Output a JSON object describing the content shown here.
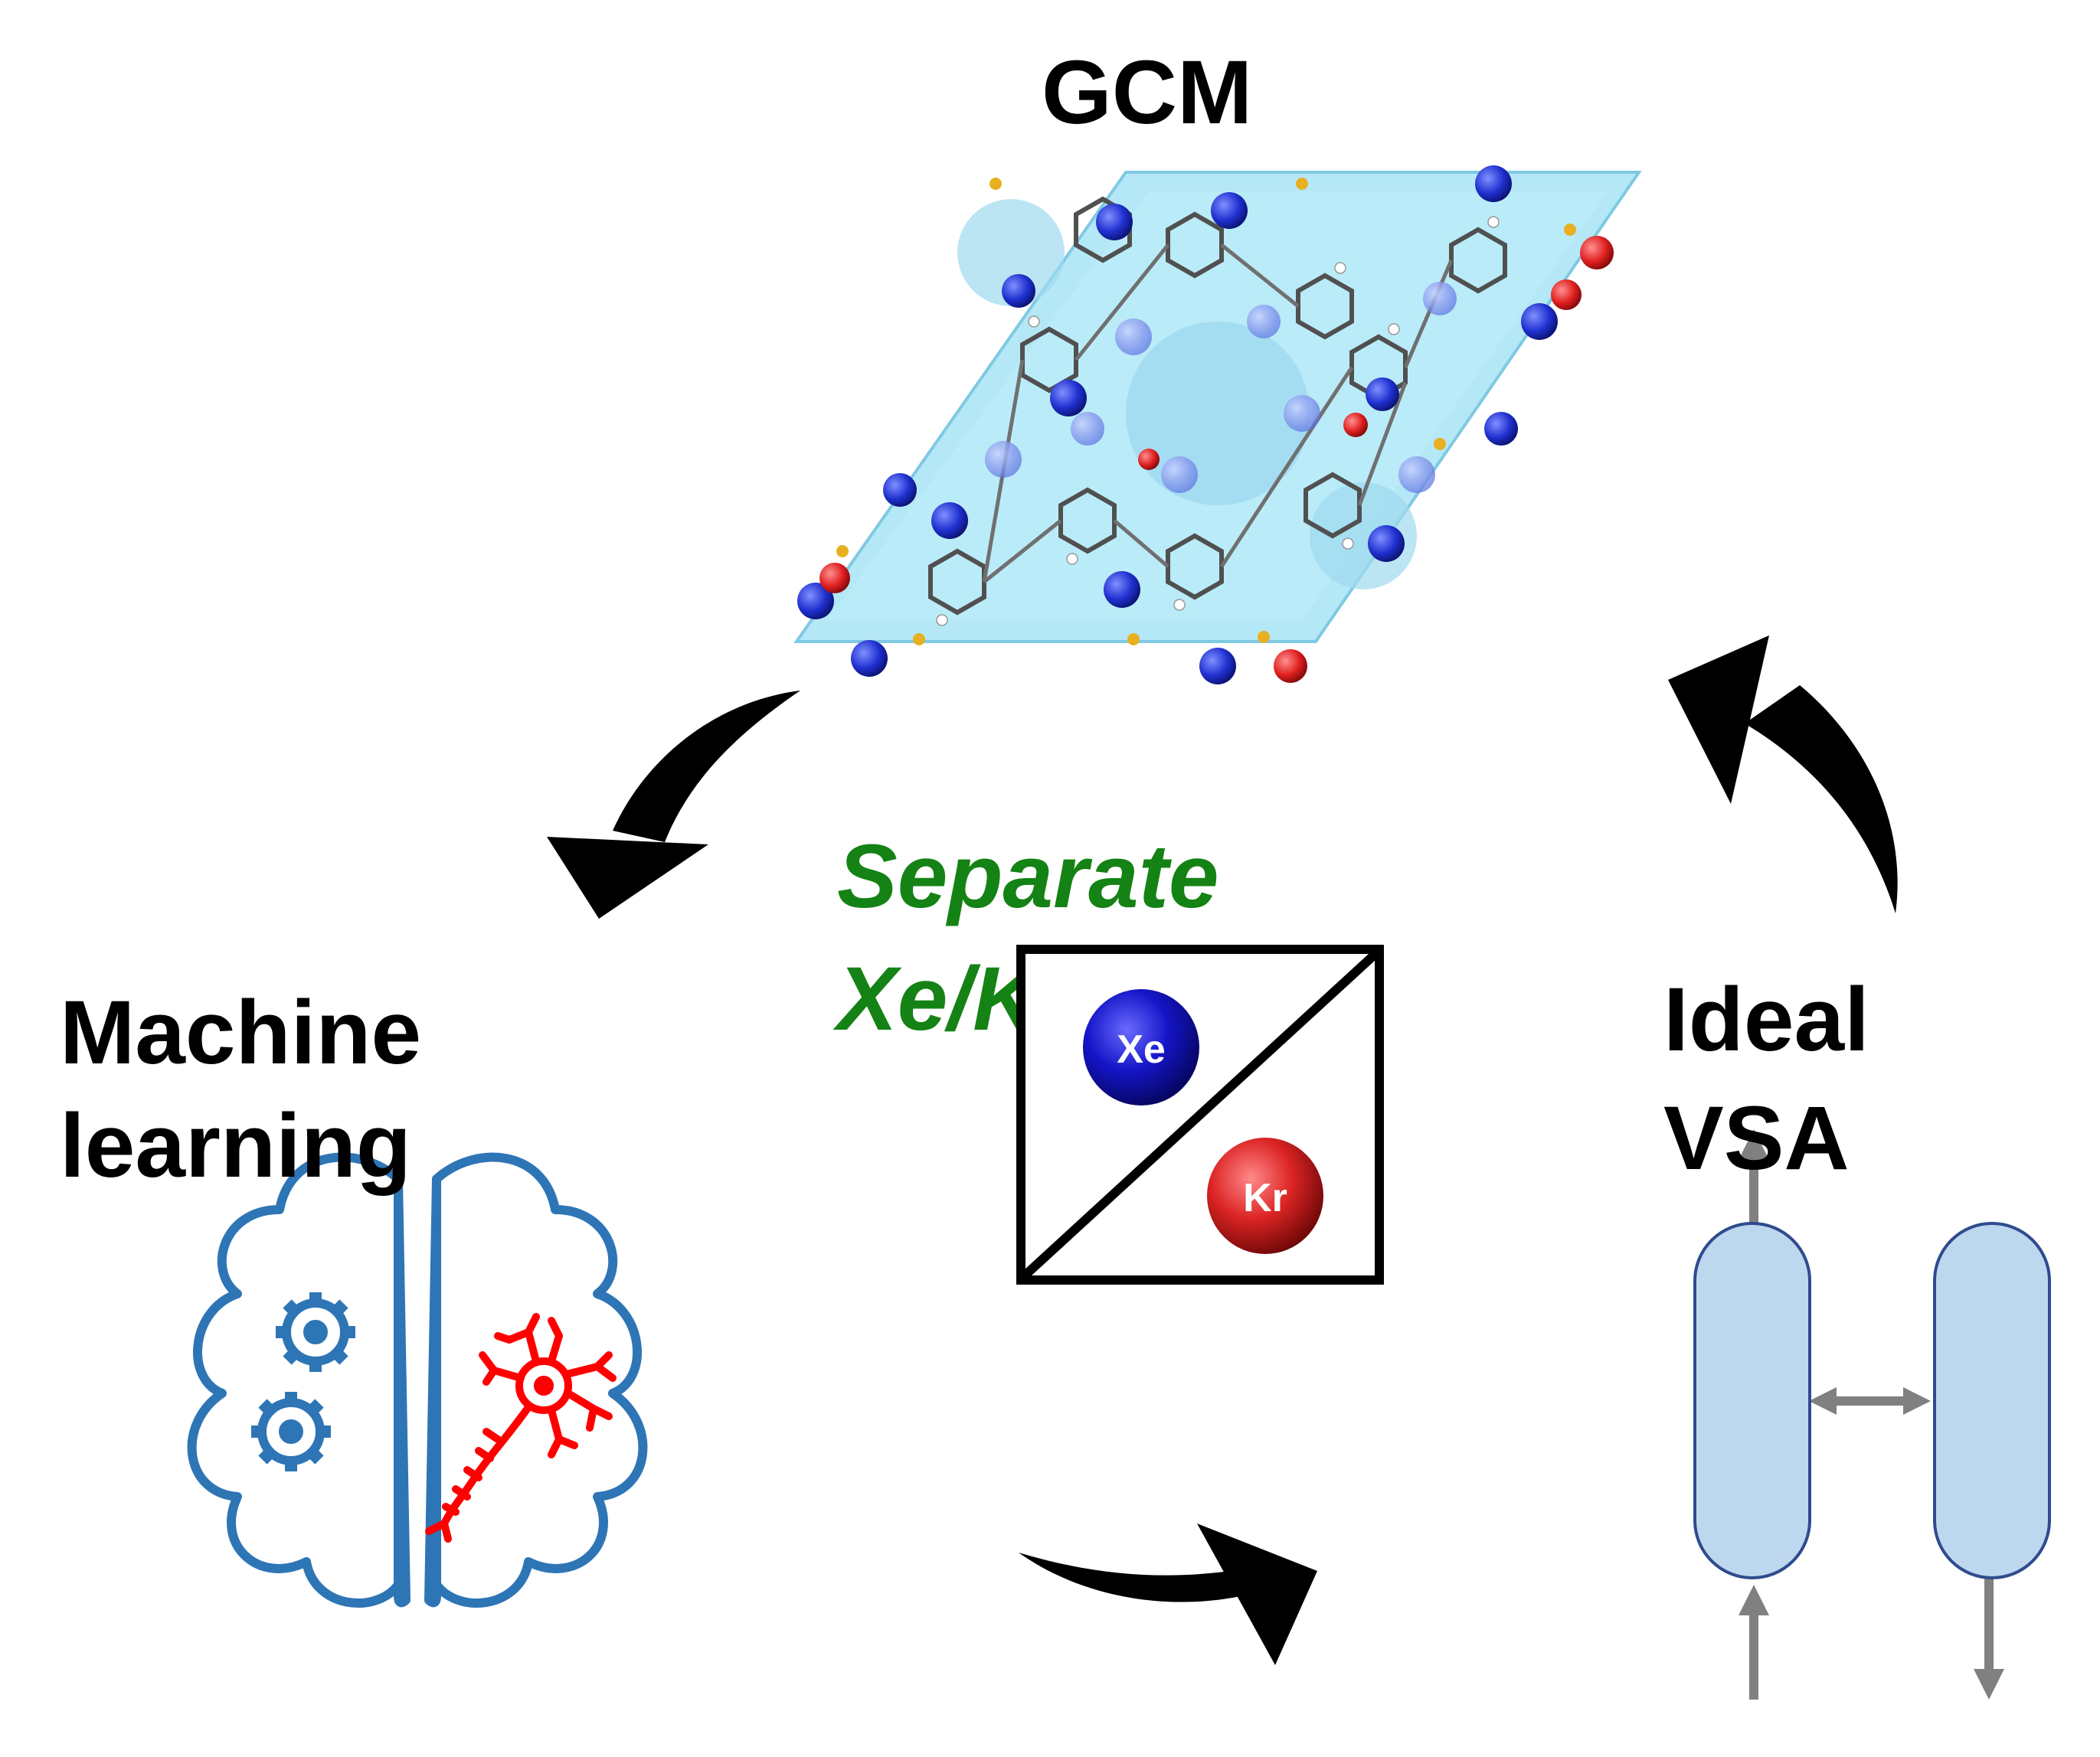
{
  "labels": {
    "gcm": "GCM",
    "ml_line1": "Machine",
    "ml_line2": "learning",
    "vsa_line1": "Ideal",
    "vsa_line2": "VSA",
    "sep_line1": "Separate",
    "sep_line2": "Xe/Kr"
  },
  "atoms": {
    "xe": "Xe",
    "kr": "Kr"
  },
  "colors": {
    "separate_text": "#148214",
    "arrow": "#000000",
    "brain_outline": "#2e75b6",
    "neuron": "#ff0000",
    "xe_ball": "#1010c0",
    "kr_ball": "#d42020",
    "column_fill": "#bdd7ee",
    "column_stroke": "#2f4b8f",
    "flow_arrow": "#808080",
    "crystal_fill": "#a8e4f4"
  },
  "icons": [
    "crystal-structure-icon",
    "brain-icon",
    "gear-icon",
    "neuron-icon",
    "separation-box-icon",
    "adsorption-column-icon"
  ]
}
